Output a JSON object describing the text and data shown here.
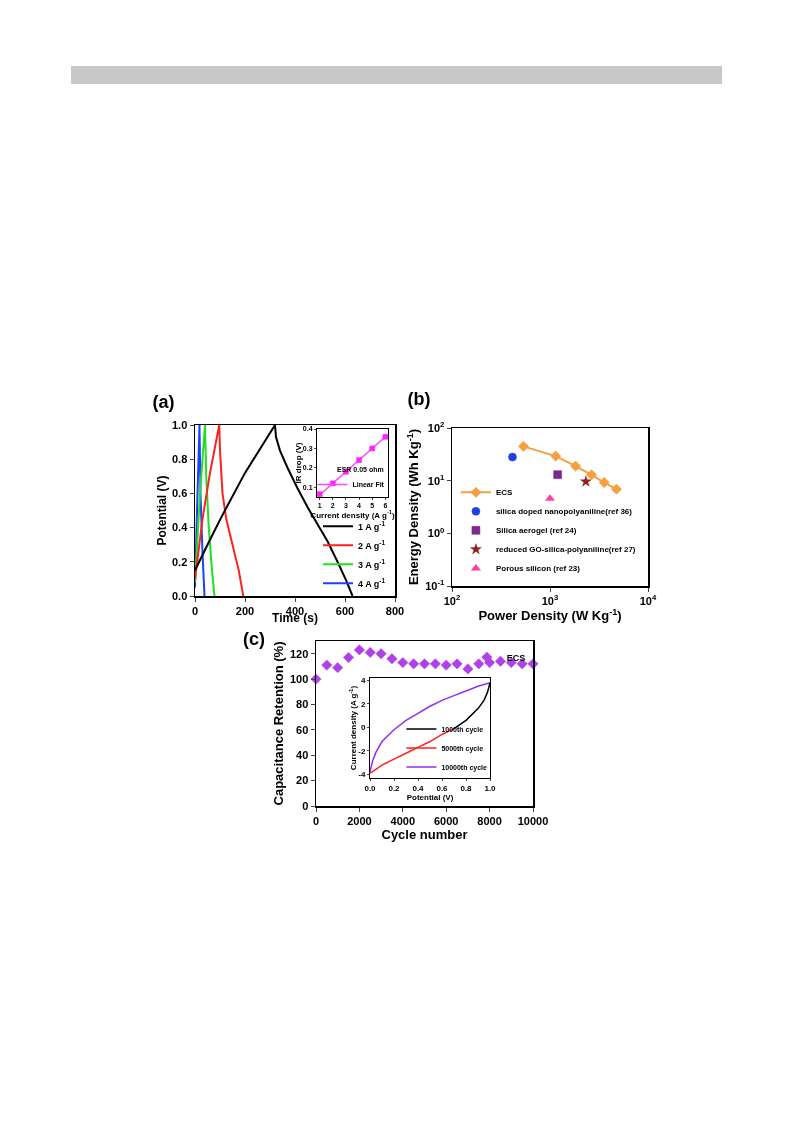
{
  "chart_data": [
    {
      "type": "line",
      "title": "(a)",
      "xlabel": "Time (s)",
      "ylabel": "Potential (V)",
      "xlim": [
        0,
        800
      ],
      "ylim": [
        0,
        1
      ],
      "xticks": [
        0,
        200,
        400,
        600,
        800
      ],
      "yticks": [
        {
          "value": 0,
          "label": "0.0"
        },
        0.2,
        0.4,
        0.6,
        0.8,
        {
          "value": 1,
          "label": "1.0"
        }
      ],
      "legend": "bottom right",
      "series": [
        {
          "name": "1 A g$^{-1}$",
          "color": "#000000",
          "x": [
            0,
            50,
            105,
            200,
            320,
            324,
            340,
            370,
            410,
            450,
            490,
            530,
            570,
            605,
            630
          ],
          "values": [
            0.15,
            0.3,
            0.46,
            0.72,
            1.0,
            0.93,
            0.85,
            0.75,
            0.63,
            0.52,
            0.42,
            0.32,
            0.2,
            0.09,
            0
          ]
        },
        {
          "name": "2 A g$^{-1}$",
          "color": "#ff2020",
          "x": [
            0,
            30,
            60,
            97,
            100,
            110,
            125,
            150,
            175,
            193
          ],
          "values": [
            0.1,
            0.45,
            0.72,
            1.0,
            0.85,
            0.6,
            0.45,
            0.3,
            0.15,
            0
          ]
        },
        {
          "name": "3 A g$^{-1}$",
          "color": "#20e020",
          "x": [
            0,
            20,
            40,
            45,
            55,
            68,
            78
          ],
          "values": [
            0.08,
            0.6,
            1.0,
            0.7,
            0.4,
            0.15,
            0
          ]
        },
        {
          "name": "4 A g$^{-1}$",
          "color": "#2040ff",
          "x": [
            0,
            9,
            18,
            22,
            30,
            38
          ],
          "values": [
            0.05,
            0.55,
            1.0,
            0.6,
            0.25,
            0
          ]
        }
      ]
    },
    {
      "type": "scatter",
      "xlabel": "Current density (A g$^{-1}$)",
      "ylabel": "IR drop (V)",
      "xlim": [
        0.8,
        6.2
      ],
      "ylim": [
        0.05,
        0.4
      ],
      "xticks": [
        1,
        2,
        3,
        4,
        5,
        6
      ],
      "yticks": [
        0.1,
        0.2,
        0.3,
        0.4
      ],
      "legend": "bottom right",
      "annotations": [
        "ESR 0.05 ohm"
      ],
      "series": [
        {
          "marker": "square",
          "color": "#ff20ff",
          "x": [
            1,
            2,
            3,
            4,
            5,
            6
          ],
          "values": [
            0.065,
            0.12,
            0.18,
            0.24,
            0.3,
            0.36
          ]
        },
        {
          "type": "line",
          "name": "Linear Fit",
          "color": "#ff40ff",
          "x": [
            1,
            6
          ],
          "values": [
            0.06,
            0.36
          ]
        }
      ]
    },
    {
      "type": "scatter",
      "title": "(b)",
      "xlabel": "Power Density (W Kg$^{-1}$)",
      "ylabel": "Energy Density (Wh Kg$^{-1}$)",
      "log": "xy",
      "xlim": [
        100,
        10000
      ],
      "ylim": [
        0.1,
        100
      ],
      "xticks": [
        {
          "value": 100,
          "label": "10$^{2}$"
        },
        {
          "value": 1000,
          "label": "10$^{3}$"
        },
        {
          "value": 10000,
          "label": "10$^{4}$"
        }
      ],
      "yticks": [
        {
          "value": 0.1,
          "label": "10$^{-1}$"
        },
        {
          "value": 1,
          "label": "10$^{0}$"
        },
        {
          "value": 10,
          "label": "10$^{1}$"
        },
        {
          "value": 100,
          "label": "10$^{2}$"
        }
      ],
      "legend": "bottom left",
      "series": [
        {
          "type": "line",
          "name": "ECS",
          "marker": "diamond",
          "color": "#f5a040",
          "x": [
            536,
            1143,
            1824,
            2656,
            3573,
            4766
          ],
          "values": [
            44.8,
            29.3,
            18.9,
            12.9,
            9.2,
            6.9
          ]
        },
        {
          "name": "silica doped nanopolyaniline(ref 36)",
          "marker": "circle",
          "color": "#2040e0",
          "x": [
            414
          ],
          "values": [
            28
          ]
        },
        {
          "name": "Silica aerogel (ref 24)",
          "marker": "square",
          "color": "#7b2a8f",
          "x": [
            1197
          ],
          "values": [
            13
          ]
        },
        {
          "name": "reduced GO-silica-polyaniline(ref 27)",
          "marker": "star",
          "color": "#8b2323",
          "x": [
            2322
          ],
          "values": [
            9.6
          ]
        },
        {
          "name": "Porous silicon (ref 23)",
          "marker": "triangle",
          "color": "#ff3fa0",
          "x": [
            1000
          ],
          "values": [
            4.6
          ]
        }
      ]
    },
    {
      "type": "scatter",
      "title": "(c)",
      "xlabel": "Cycle number",
      "ylabel": "Capacitance Retention (%)",
      "xlim": [
        0,
        10000
      ],
      "ylim": [
        0,
        130
      ],
      "xticks": [
        0,
        2000,
        4000,
        6000,
        8000,
        10000
      ],
      "yticks": [
        0,
        20,
        40,
        60,
        80,
        100,
        120
      ],
      "legend": "top right",
      "marker": "diamond",
      "series": [
        {
          "name": "ECS",
          "color": "#b040e8",
          "x": [
            0,
            500,
            1000,
            1500,
            2000,
            2500,
            3000,
            3500,
            4000,
            4500,
            5000,
            5500,
            6000,
            6500,
            7000,
            7500,
            8000,
            8500,
            9000,
            9500,
            10000
          ],
          "values": [
            100,
            111,
            109,
            117,
            123,
            121,
            120,
            116,
            113,
            112,
            112,
            112,
            111,
            112,
            108,
            112,
            113,
            114,
            113,
            112,
            112
          ]
        }
      ]
    },
    {
      "type": "line",
      "xlabel": "Potential (V)",
      "ylabel": "Current density (A g$^{-1}$)",
      "xlim": [
        0,
        1
      ],
      "ylim": [
        -4.3,
        4.2
      ],
      "xticks": [
        {
          "value": 0,
          "label": "0.0"
        },
        0.2,
        0.4,
        0.6,
        0.8,
        {
          "value": 1,
          "label": "1.0"
        }
      ],
      "yticks": [
        -4,
        -2,
        0,
        2,
        4
      ],
      "legend": "bottom right",
      "series": [
        {
          "name": "1000th cycle",
          "color": "#000000",
          "x": [
            1.0,
            0.98,
            0.95,
            0.9,
            0.8,
            0.7
          ],
          "values": [
            3.8,
            3.0,
            2.3,
            1.6,
            0.6,
            -0.1
          ]
        },
        {
          "name": "5000th cycle",
          "color": "#ff2020",
          "x": [
            0.7,
            0.6,
            0.5,
            0.4,
            0.3,
            0.2,
            0.1,
            0
          ],
          "values": [
            -0.1,
            -0.6,
            -1.2,
            -1.7,
            -2.2,
            -2.7,
            -3.2,
            -3.9
          ]
        },
        {
          "name": "10000th cycle",
          "color": "#9030f0",
          "x": [
            0,
            0.02,
            0.05,
            0.1,
            0.2,
            0.3,
            0.4,
            0.5,
            0.6,
            0.7,
            0.8,
            0.9,
            1.0
          ],
          "values": [
            -3.8,
            -2.9,
            -2.1,
            -1.2,
            -0.2,
            0.6,
            1.2,
            1.8,
            2.3,
            2.7,
            3.1,
            3.5,
            3.8
          ]
        }
      ]
    }
  ]
}
